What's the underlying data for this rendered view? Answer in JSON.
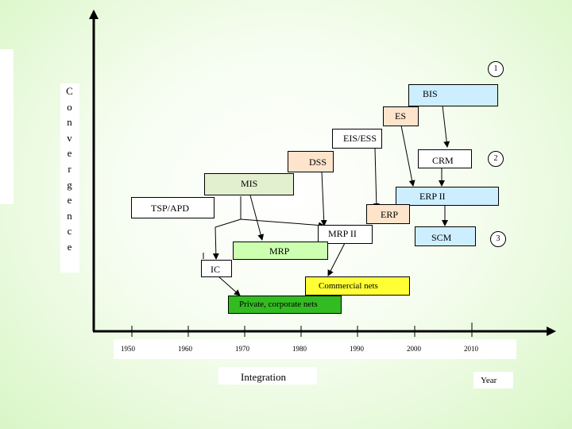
{
  "vertical_label": [
    "C",
    "o",
    "n",
    "v",
    "e",
    "r",
    "g",
    "e",
    "n",
    "c",
    "e"
  ],
  "boxes": {
    "bis": "BIS",
    "es": "ES",
    "eis_ess": "EIS/ESS",
    "dss": "DSS",
    "crm": "CRM",
    "mis": "MIS",
    "erp_ii": "ERP II",
    "tsp_apd": "TSP/APD",
    "erp": "ERP",
    "mrp_ii": "MRP II",
    "scm": "SCM",
    "mrp": "MRP",
    "ic": "IC",
    "commercial_nets": "Commercial nets",
    "private_nets": "Private, corporate nets"
  },
  "markers": [
    "1",
    "2",
    "3"
  ],
  "axis": {
    "years": [
      "1950",
      "1960",
      "1970",
      "1980",
      "1990",
      "2000",
      "2010"
    ],
    "x_label": "Integration",
    "year_label": "Year"
  },
  "colors": {
    "bis": "#cceeff",
    "es": "#ffe4cc",
    "eis_ess": "#ffffff",
    "dss": "#ffe4cc",
    "crm": "#ffffff",
    "mis": "#e2f0d0",
    "erp_ii": "#cceeff",
    "tsp_apd": "#ffffff",
    "erp": "#ffe4cc",
    "mrp_ii": "#ffffff",
    "scm": "#cceeff",
    "mrp": "#ccffb0",
    "ic": "#ffffff",
    "commercial_nets": "#ffff33",
    "private_nets": "#33bb22"
  }
}
